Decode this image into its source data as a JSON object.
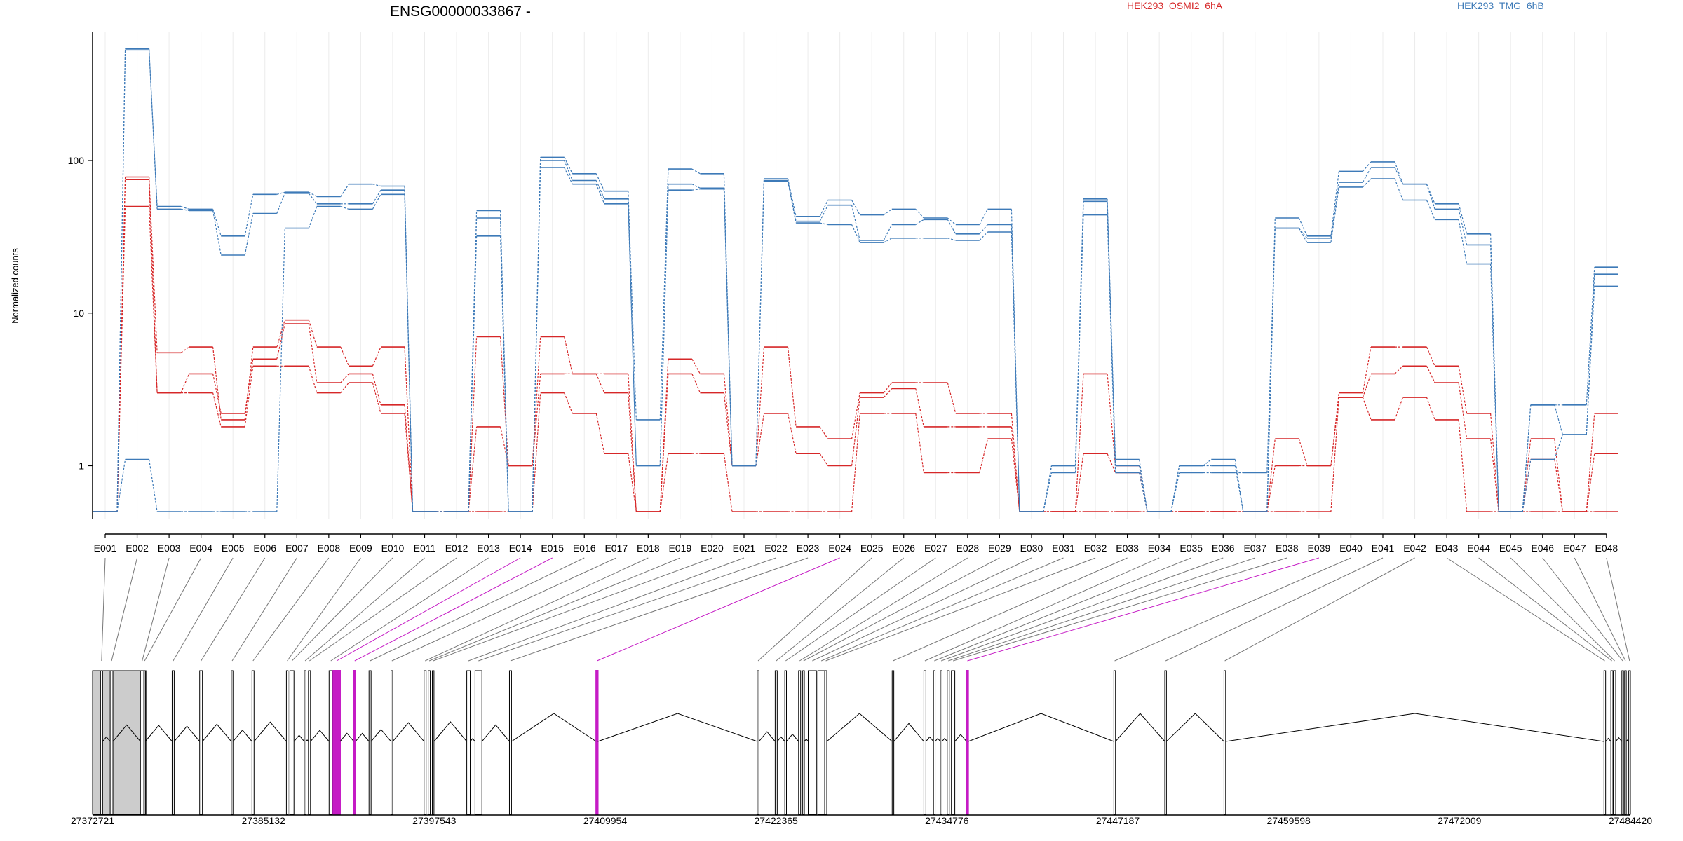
{
  "chart_data": {
    "type": "line",
    "title": "ENSG00000033867 -",
    "ylabel": "Normalized counts",
    "xlabel": "",
    "y_scale": "log",
    "ylim": [
      0.45,
      700
    ],
    "y_ticks": [
      1,
      10,
      100
    ],
    "y_tick_labels": [
      "1",
      "10",
      "100"
    ],
    "grid": "vertical-light",
    "legend_placement": "top-right",
    "categories": [
      "E001",
      "E002",
      "E003",
      "E004",
      "E005",
      "E006",
      "E007",
      "E008",
      "E009",
      "E010",
      "E011",
      "E012",
      "E013",
      "E014",
      "E015",
      "E016",
      "E017",
      "E018",
      "E019",
      "E020",
      "E021",
      "E022",
      "E023",
      "E024",
      "E025",
      "E026",
      "E027",
      "E028",
      "E029",
      "E030",
      "E031",
      "E032",
      "E033",
      "E034",
      "E035",
      "E036",
      "E037",
      "E038",
      "E039",
      "E040",
      "E041",
      "E042",
      "E043",
      "E044",
      "E045",
      "E046",
      "E047",
      "E048"
    ],
    "series": [
      {
        "name": "HEK293_OSMI2_6hA",
        "group": "red",
        "color": "#d62728",
        "values": [
          0.5,
          78,
          5.5,
          6,
          2,
          6,
          9,
          6,
          4.5,
          6,
          0.5,
          0.5,
          7,
          1,
          7,
          4,
          4,
          0.5,
          5,
          4,
          1,
          6,
          1.8,
          1.5,
          3,
          3.5,
          3.5,
          2.2,
          2.2,
          0.5,
          0.5,
          4,
          1,
          0.5,
          0.5,
          0.5,
          0.5,
          1.5,
          1,
          3,
          6,
          6,
          4.5,
          2.2,
          0.5,
          1.5,
          0.5,
          2.2
        ]
      },
      {
        "name": "HEK293_OSMI2_6hA",
        "group": "red",
        "color": "#d62728",
        "values": [
          0.5,
          75,
          3,
          4,
          2.2,
          5,
          8.5,
          3.5,
          4,
          2.5,
          0.5,
          0.5,
          1.8,
          1,
          4,
          4,
          3,
          0.5,
          4,
          3,
          1,
          2.2,
          1.2,
          1,
          2.8,
          3.2,
          1.8,
          1.8,
          1.8,
          0.5,
          0.5,
          1.2,
          0.9,
          0.5,
          0.5,
          0.5,
          0.5,
          1,
          1,
          2.8,
          4,
          4.5,
          3.5,
          1.5,
          0.5,
          1.1,
          0.5,
          1.2
        ]
      },
      {
        "name": "HEK293_OSMI2_6hA",
        "group": "red",
        "color": "#d62728",
        "values": [
          0.5,
          50,
          3,
          3,
          1.8,
          4.5,
          4.5,
          3,
          3.5,
          2.2,
          0.5,
          0.5,
          0.5,
          0.5,
          3,
          2.2,
          1.2,
          0.5,
          1.2,
          1.2,
          0.5,
          0.5,
          0.5,
          0.5,
          2.2,
          2.2,
          0.9,
          0.9,
          1.5,
          0.5,
          0.5,
          0.5,
          0.5,
          0.5,
          0.5,
          0.5,
          0.5,
          0.5,
          0.5,
          2.8,
          2,
          2.8,
          2,
          0.5,
          0.5,
          0.5,
          0.5,
          0.5
        ]
      },
      {
        "name": "HEK293_TMG_6hB",
        "group": "blue",
        "color": "#3d7ab8",
        "values": [
          0.5,
          540,
          50,
          48,
          32,
          60,
          62,
          58,
          70,
          68,
          0.5,
          0.5,
          47,
          0.5,
          105,
          82,
          63,
          2,
          88,
          82,
          1,
          76,
          43,
          55,
          44,
          48,
          42,
          38,
          48,
          0.5,
          1,
          56,
          1.1,
          0.5,
          1,
          1.1,
          0.5,
          42,
          32,
          85,
          98,
          70,
          52,
          33,
          0.5,
          2.5,
          2.5,
          20
        ]
      },
      {
        "name": "HEK293_TMG_6hB",
        "group": "blue",
        "color": "#3d7ab8",
        "values": [
          0.5,
          530,
          48,
          47,
          24,
          45,
          61,
          52,
          52,
          64,
          0.5,
          0.5,
          42,
          0.5,
          100,
          74,
          56,
          1,
          70,
          66,
          1,
          74,
          40,
          51,
          30,
          38,
          41,
          33,
          38,
          0.5,
          1,
          54,
          1,
          0.5,
          1,
          1,
          0.5,
          36,
          31,
          72,
          90,
          70,
          48,
          28,
          0.5,
          1.1,
          1.6,
          18
        ]
      },
      {
        "name": "HEK293_TMG_6hB",
        "group": "blue",
        "color": "#3d7ab8",
        "values": [
          0.5,
          1.1,
          0.5,
          0.5,
          0.5,
          0.5,
          36,
          50,
          48,
          60,
          0.5,
          0.5,
          32,
          0.5,
          90,
          70,
          52,
          1,
          64,
          65,
          1,
          73,
          39,
          38,
          29,
          31,
          31,
          30,
          34,
          0.5,
          0.9,
          44,
          0.9,
          0.5,
          0.9,
          0.9,
          0.9,
          36,
          29,
          67,
          76,
          55,
          41,
          21,
          0.5,
          2.5,
          1.6,
          15
        ]
      }
    ],
    "legend": [
      {
        "label": "HEK293_OSMI2_6hA",
        "color": "#d62728"
      },
      {
        "label": "HEK293_TMG_6hB",
        "color": "#3d7ab8"
      }
    ],
    "gene_model": {
      "coordinate_range": [
        27372721,
        27484420
      ],
      "coordinate_ticks": [
        27372721,
        27385132,
        27397543,
        27409954,
        27422365,
        27434776,
        27447187,
        27459598,
        27472009,
        27484420
      ],
      "coordinate_tick_labels": [
        "27372721",
        "27385132",
        "27397543",
        "27409954",
        "27422365",
        "27434776",
        "27447187",
        "27459598",
        "27472009",
        "27484420"
      ],
      "highlight_color": "#c51bc5",
      "highlighted_exons": [
        "E014",
        "E015",
        "E024",
        "E039"
      ],
      "exon_genomic_positions": [
        27373300,
        27374000,
        27376200,
        27376450,
        27378500,
        27380500,
        27382800,
        27384300,
        27386800,
        27387050,
        27388100,
        27388400,
        27389900,
        27390200,
        27391700,
        27392800,
        27394400,
        27396800,
        27397100,
        27397400,
        27399900,
        27400500,
        27403000,
        27409300,
        27421000,
        27422300,
        27423000,
        27424000,
        27424300,
        27424700,
        27425400,
        27425900,
        27430800,
        27433100,
        27433800,
        27434300,
        27434800,
        27435100,
        27436200,
        27446900,
        27450600,
        27454900,
        27482500,
        27483000,
        27483200,
        27483800,
        27484000,
        27484300
      ],
      "exon_genomic_widths": [
        150,
        200,
        250,
        100,
        150,
        200,
        120,
        150,
        120,
        300,
        120,
        150,
        250,
        500,
        120,
        150,
        120,
        150,
        150,
        120,
        250,
        500,
        150,
        120,
        120,
        150,
        120,
        150,
        120,
        600,
        500,
        150,
        120,
        150,
        120,
        120,
        150,
        250,
        120,
        120,
        120,
        120,
        120,
        150,
        150,
        120,
        120,
        120
      ],
      "first_exon_span": [
        27372721,
        27376600
      ]
    }
  }
}
